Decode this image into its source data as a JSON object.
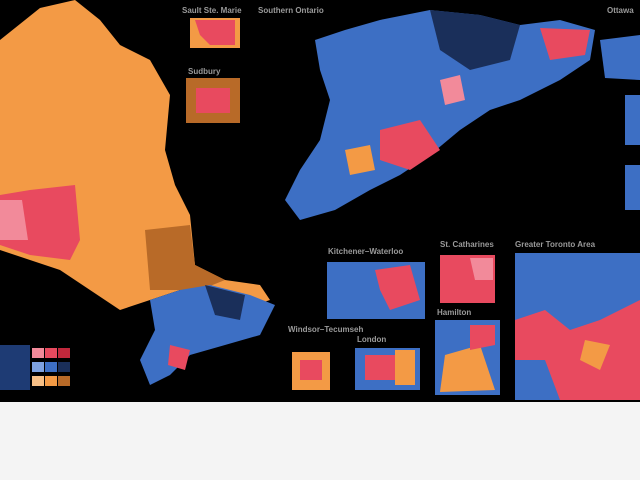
{
  "insets": [
    {
      "label": "Sault Ste. Marie"
    },
    {
      "label": "Southern Ontario"
    },
    {
      "label": "Sudbury"
    },
    {
      "label": "Ottawa"
    },
    {
      "label": "Kitchener–Waterloo"
    },
    {
      "label": "St. Catharines"
    },
    {
      "label": "Greater Toronto Area"
    },
    {
      "label": "Hamilton"
    },
    {
      "label": "Windsor–Tecumseh"
    },
    {
      "label": "London"
    }
  ]
}
